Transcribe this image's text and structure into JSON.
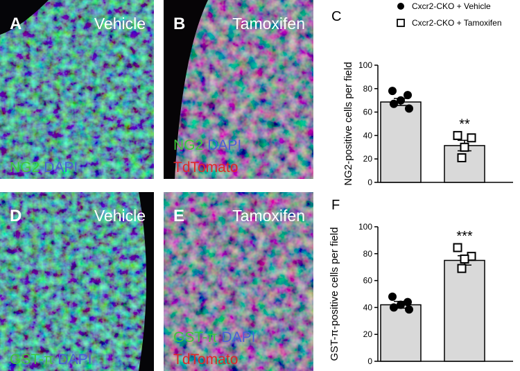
{
  "panels": [
    {
      "letter": "A",
      "condition": "Vehicle",
      "stains": [
        [
          {
            "text": "NG2",
            "color": "#3cc83c"
          },
          {
            "text": "DAPI",
            "color": "#4a5fd8"
          }
        ]
      ]
    },
    {
      "letter": "B",
      "condition": "Tamoxifen",
      "stains": [
        [
          {
            "text": "NG2",
            "color": "#3cc83c"
          },
          {
            "text": "DAPI",
            "color": "#4a5fd8"
          }
        ],
        [
          {
            "text": "TdTomato",
            "color": "#e02828"
          }
        ]
      ]
    },
    {
      "letter": "D",
      "condition": "Vehicle",
      "stains": [
        [
          {
            "text": "GST-π",
            "color": "#3cc83c"
          },
          {
            "text": "DAPI",
            "color": "#4a5fd8"
          }
        ]
      ]
    },
    {
      "letter": "E",
      "condition": "Tamoxifen",
      "stains": [
        [
          {
            "text": "GST-π",
            "color": "#3cc83c"
          },
          {
            "text": "DAPI",
            "color": "#4a5fd8"
          }
        ],
        [
          {
            "text": "TdTomato",
            "color": "#e02828"
          }
        ]
      ]
    }
  ],
  "chart_data": [
    {
      "type": "bar-scatter",
      "panel": "C",
      "ylabel": "NG2-positive cells per field",
      "ylim": [
        0,
        100
      ],
      "yticks": [
        0,
        20,
        40,
        60,
        80,
        100
      ],
      "bar_color": "#d9d9d9",
      "groups": [
        {
          "name": "Cxcr2-CKO + Vehicle",
          "marker": "circle",
          "mean": 68.6,
          "sem": 3,
          "points": [
            78,
            74.5,
            70,
            67,
            63
          ]
        },
        {
          "name": "Cxcr2-CKO + Tamoxifen",
          "marker": "square",
          "mean": 31.4,
          "sem": 4.5,
          "points": [
            40,
            38,
            30,
            21
          ],
          "annotation": "**"
        }
      ]
    },
    {
      "type": "bar-scatter",
      "panel": "F",
      "ylabel": "GST-π-positive cells per field",
      "ylim": [
        0,
        100
      ],
      "yticks": [
        0,
        20,
        40,
        60,
        80,
        100
      ],
      "bar_color": "#d9d9d9",
      "groups": [
        {
          "marker": "circle",
          "mean": 42,
          "sem": 2.5,
          "points": [
            48,
            44,
            42,
            40,
            38.5
          ]
        },
        {
          "marker": "square",
          "mean": 75,
          "sem": 3.5,
          "points": [
            84.5,
            78,
            76,
            69
          ],
          "annotation": "***"
        }
      ]
    }
  ]
}
